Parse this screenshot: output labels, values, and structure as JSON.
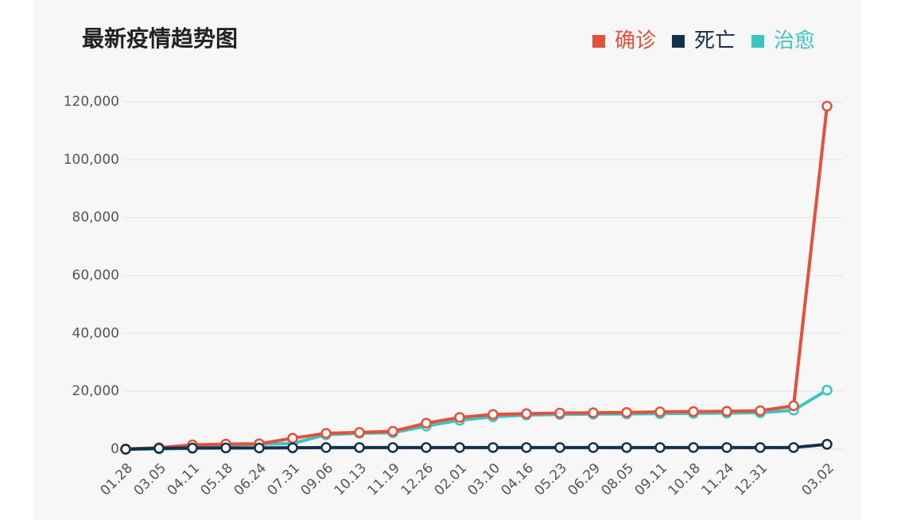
{
  "chart_data": {
    "type": "line",
    "title": "最新疫情趋势图",
    "categories": [
      "01.28",
      "03.05",
      "04.11",
      "05.18",
      "06.24",
      "07.31",
      "09.06",
      "10.13",
      "11.19",
      "12.26",
      "02.01",
      "03.10",
      "04.16",
      "05.23",
      "06.29",
      "08.05",
      "09.11",
      "10.18",
      "11.24",
      "12.31",
      null,
      "03.02"
    ],
    "series": [
      {
        "name": "确诊",
        "color": "#e4503a",
        "values": [
          100,
          500,
          1500,
          1800,
          1900,
          3800,
          5500,
          5800,
          6200,
          9000,
          11000,
          12000,
          12300,
          12500,
          12600,
          12700,
          12900,
          13000,
          13100,
          13300,
          15000,
          118500
        ]
      },
      {
        "name": "死亡",
        "color": "#15304a",
        "values": [
          0,
          300,
          400,
          450,
          450,
          500,
          600,
          600,
          600,
          600,
          600,
          600,
          600,
          600,
          600,
          600,
          600,
          600,
          600,
          600,
          600,
          1700
        ]
      },
      {
        "name": "治愈",
        "color": "#3cc4c4",
        "values": [
          0,
          100,
          300,
          1500,
          1700,
          2000,
          5000,
          5500,
          5700,
          8000,
          10000,
          11200,
          11800,
          12000,
          12100,
          12200,
          12300,
          12400,
          12500,
          12600,
          13500,
          20400
        ]
      }
    ],
    "ylim": [
      0,
      120000
    ],
    "yticks": [
      0,
      {
        "value": 20000,
        "label": "20,000"
      },
      {
        "value": 40000,
        "label": "40,000"
      },
      {
        "value": 60000,
        "label": "60,000"
      },
      {
        "value": 80000,
        "label": "80,000"
      },
      {
        "value": 100000,
        "label": "100,000"
      },
      {
        "value": 120000,
        "label": "120,000"
      }
    ],
    "grid": true,
    "legend": "top-right"
  }
}
